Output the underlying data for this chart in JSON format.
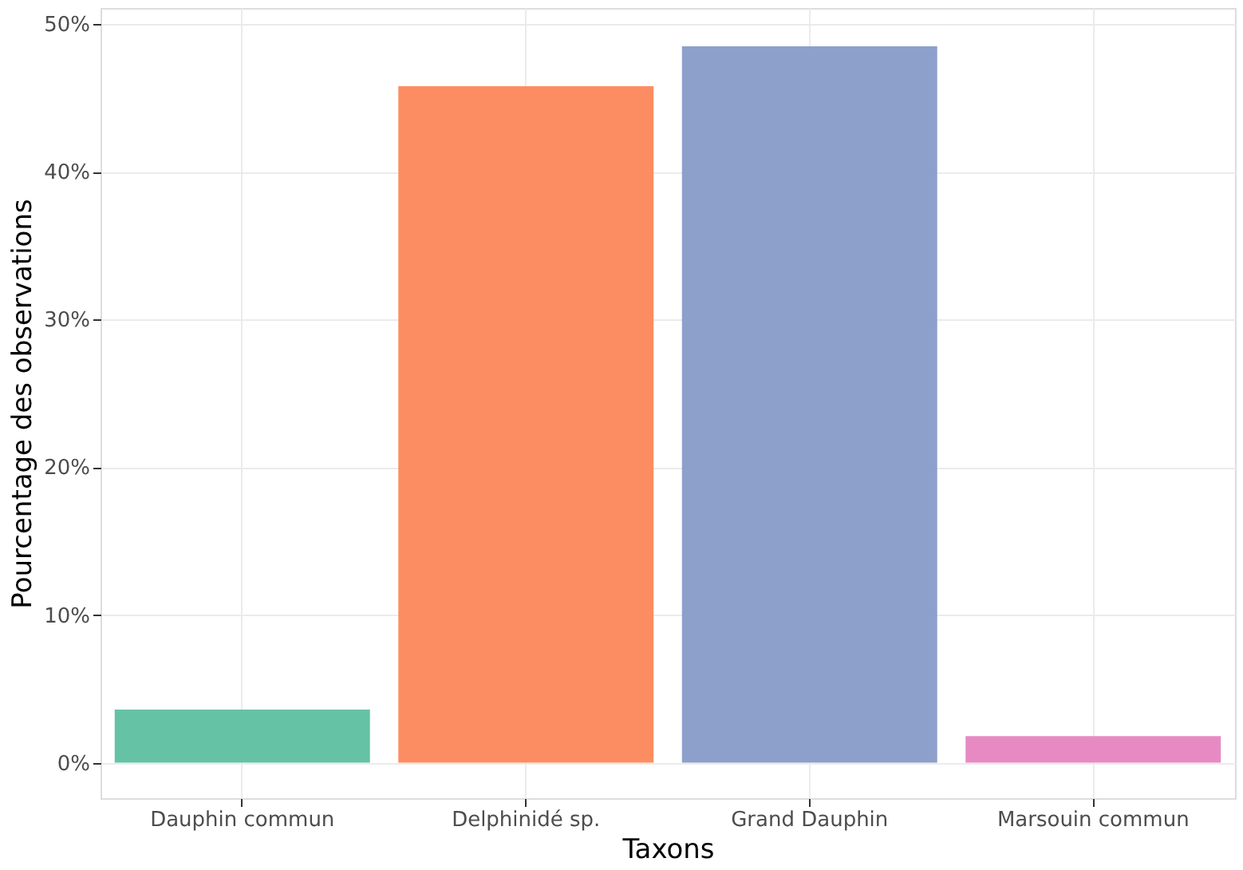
{
  "chart_data": {
    "type": "bar",
    "xlabel": "Taxons",
    "ylabel": "Pourcentage des observations",
    "categories": [
      "Dauphin commun",
      "Delphinidé sp.",
      "Grand Dauphin",
      "Marsouin commun"
    ],
    "values": [
      3.6,
      45.8,
      48.5,
      1.8
    ],
    "colors": [
      "#66c2a5",
      "#fc8d62",
      "#8da0cb",
      "#e78ac3"
    ],
    "ylim": [
      -2.4,
      51.1
    ],
    "yticks": [
      {
        "value": 0,
        "label": "0%"
      },
      {
        "value": 10,
        "label": "10%"
      },
      {
        "value": 20,
        "label": "20%"
      },
      {
        "value": 30,
        "label": "30%"
      },
      {
        "value": 40,
        "label": "40%"
      },
      {
        "value": 50,
        "label": "50%"
      }
    ],
    "grid": true,
    "legend": false
  }
}
